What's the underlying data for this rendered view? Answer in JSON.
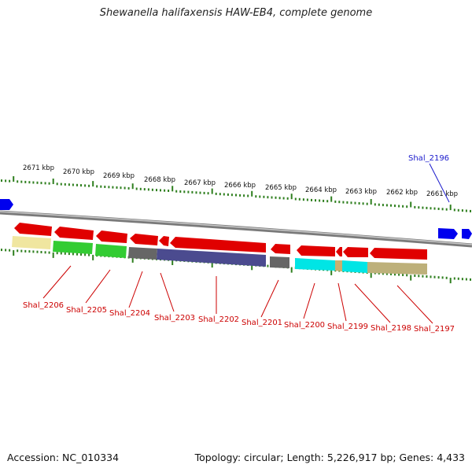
{
  "title": "Shewanella halifaxensis HAW-EB4, complete genome",
  "footer": {
    "accession": "Accession: NC_010334",
    "summary": "Topology: circular; Length: 5,226,917 bp; Genes: 4,433"
  },
  "colors": {
    "backbone": "#8c8c8c",
    "gene_forward_red": "#e00000",
    "gene_blue": "#0000ee",
    "tick_green": "#2f7f1f",
    "label_red": "#cc0000",
    "label_blue": "#1a1acc"
  },
  "scale_labels": [
    "2671 kbp",
    "2670 kbp",
    "2669 kbp",
    "2668 kbp",
    "2667 kbp",
    "2666 kbp",
    "2665 kbp",
    "2664 kbp",
    "2663 kbp",
    "2662 kbp",
    "2661 kbp"
  ],
  "gene_labels": [
    {
      "text": "Shal_2206",
      "color": "red"
    },
    {
      "text": "Shal_2205",
      "color": "red"
    },
    {
      "text": "Shal_2204",
      "color": "red"
    },
    {
      "text": "Shal_2203",
      "color": "red"
    },
    {
      "text": "Shal_2202",
      "color": "red"
    },
    {
      "text": "Shal_2201",
      "color": "red"
    },
    {
      "text": "Shal_2200",
      "color": "red"
    },
    {
      "text": "Shal_2199",
      "color": "red"
    },
    {
      "text": "Shal_2198",
      "color": "red"
    },
    {
      "text": "Shal_2197",
      "color": "red"
    },
    {
      "text": "Shal_2196",
      "color": "blue"
    }
  ],
  "category_bar_colors": [
    "#f0e6a0",
    "#33cc33",
    "#33cc33",
    "#666666",
    "#4b4b8f",
    "#666666",
    "#00e5e5",
    "#c8b070",
    "#00e5e5",
    "#bdb07a"
  ]
}
